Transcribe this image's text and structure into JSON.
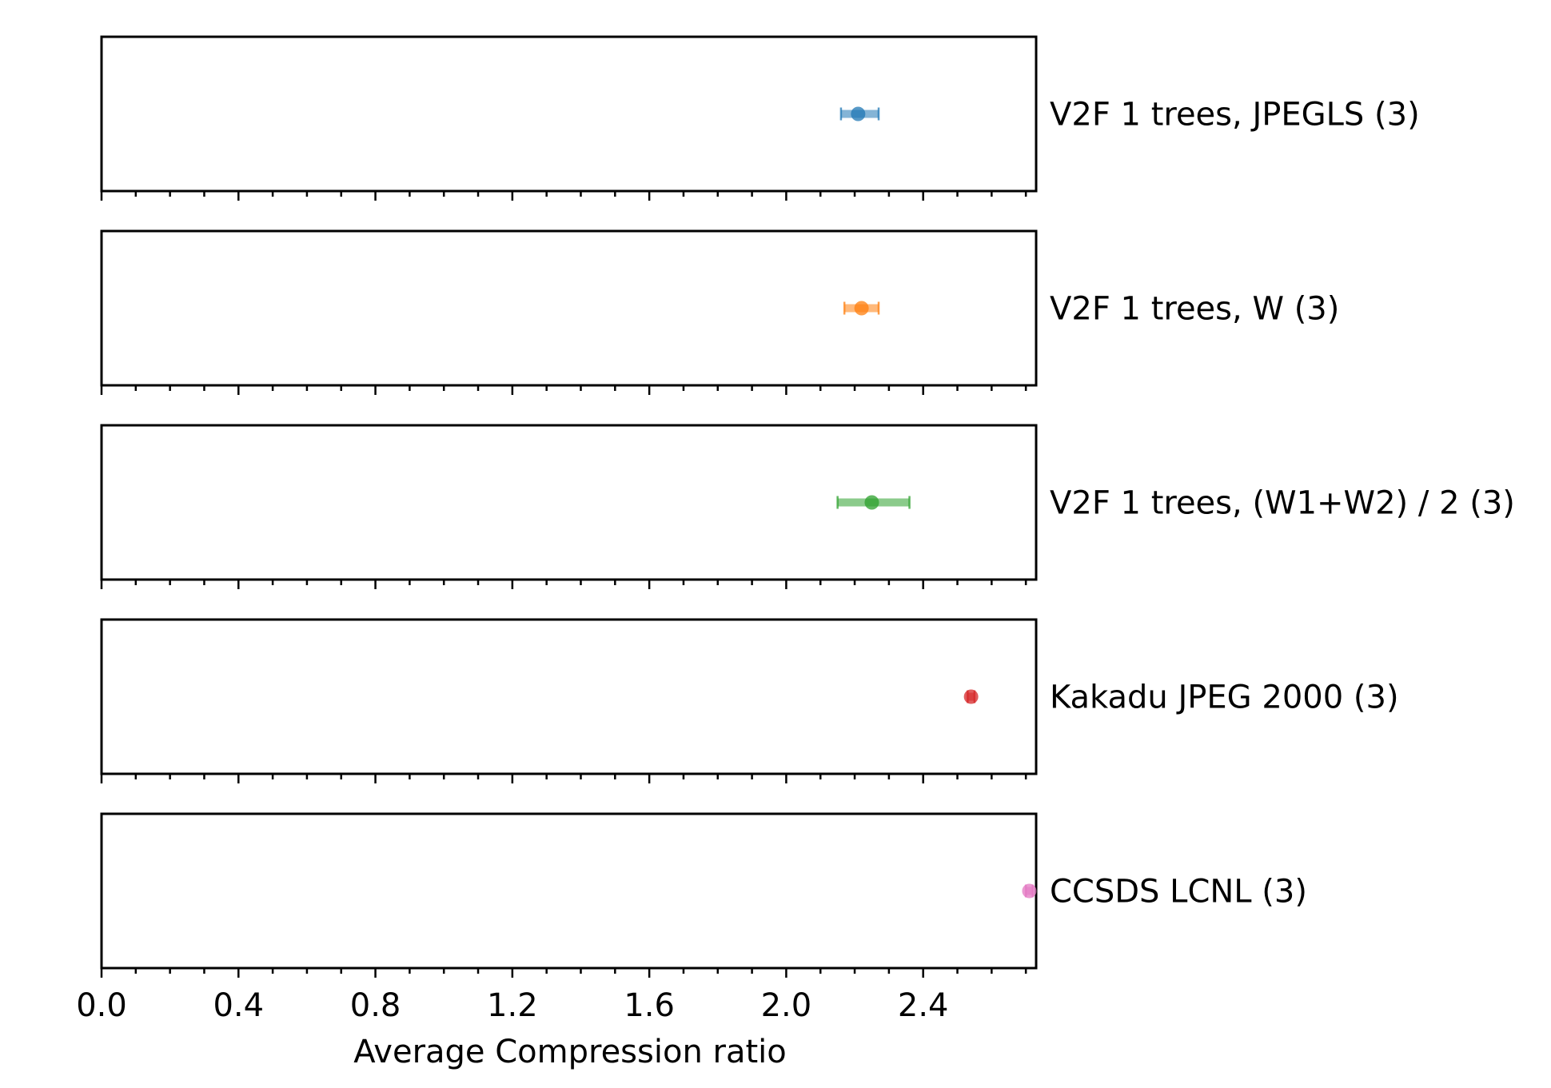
{
  "chart_data": {
    "type": "scatter",
    "xlabel": "Average Compression ratio",
    "xlim": [
      0.0,
      2.73
    ],
    "xticks": [
      "0.0",
      "0.4",
      "0.8",
      "1.2",
      "1.6",
      "2.0",
      "2.4"
    ],
    "xtick_values": [
      0.0,
      0.4,
      0.8,
      1.2,
      1.6,
      2.0,
      2.4
    ],
    "minor_tick_step": 0.1,
    "grid": false,
    "series": [
      {
        "name": "V2F 1 trees, JPEGLS (3)",
        "value": 2.21,
        "err_low": 2.16,
        "err_high": 2.27,
        "color": "#1f77b4"
      },
      {
        "name": "V2F 1 trees, W (3)",
        "value": 2.22,
        "err_low": 2.17,
        "err_high": 2.27,
        "color": "#ff7f0e"
      },
      {
        "name": "V2F 1 trees, (W1+W2) / 2 (3)",
        "value": 2.25,
        "err_low": 2.15,
        "err_high": 2.36,
        "color": "#2ca02c"
      },
      {
        "name": "Kakadu JPEG 2000 (3)",
        "value": 2.54,
        "err_low": 2.53,
        "err_high": 2.55,
        "color": "#d62728"
      },
      {
        "name": "CCSDS LCNL (3)",
        "value": 2.71,
        "err_low": 2.7,
        "err_high": 2.72,
        "color": "#e377c2"
      }
    ]
  }
}
